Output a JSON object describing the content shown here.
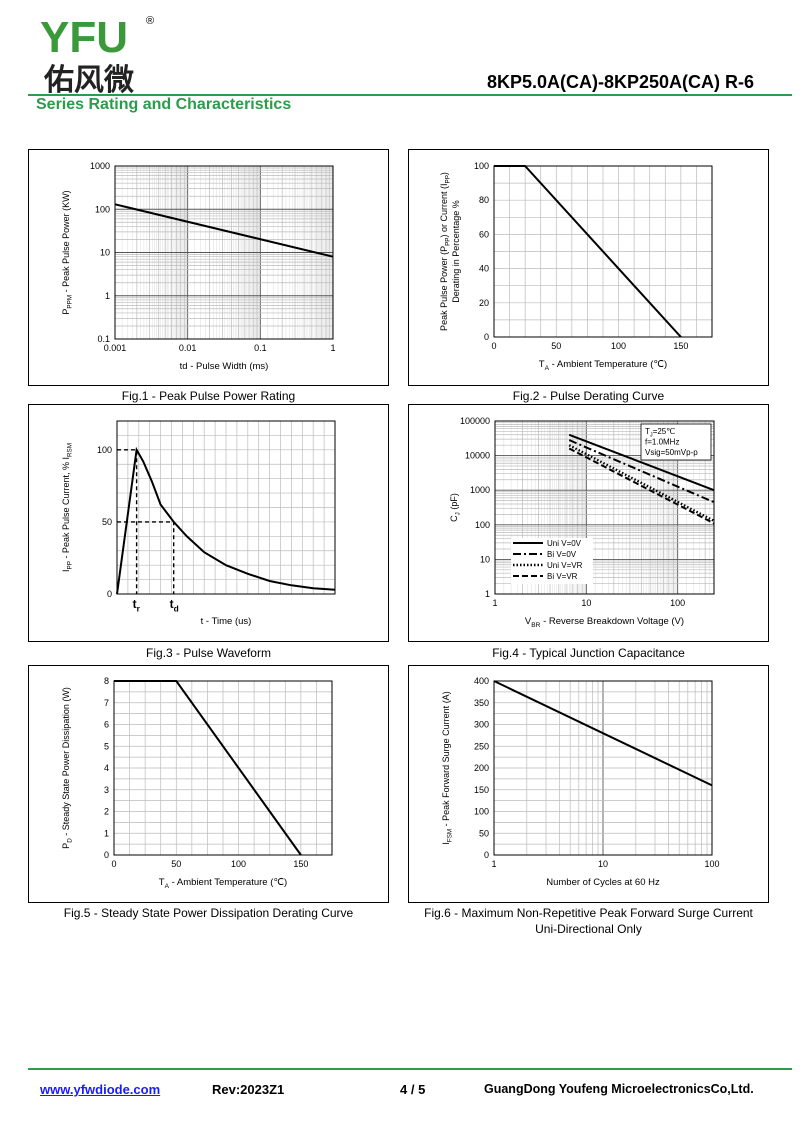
{
  "header": {
    "logo_text": "YFU",
    "logo_registered": "®",
    "logo_cn": "佑风微",
    "doc_title": "8KP5.0A(CA)-8KP250A(CA)  R-6",
    "section_title": "Series Rating and Characteristics"
  },
  "colors": {
    "accent": "#2a9d4a",
    "logo_yellow": "#f2b705",
    "logo_green": "#3a9a3a",
    "link": "#1a1aff"
  },
  "charts": {
    "fig1": {
      "caption": "Fig.1 - Peak Pulse Power Rating"
    },
    "fig2": {
      "caption": "Fig.2 - Pulse Derating Curve"
    },
    "fig3": {
      "caption": "Fig.3 - Pulse Waveform"
    },
    "fig4": {
      "caption": "Fig.4 - Typical Junction Capacitance"
    },
    "fig5": {
      "caption": "Fig.5 - Steady State Power Dissipation Derating Curve"
    },
    "fig6": {
      "caption": "Fig.6 - Maximum Non-Repetitive Peak Forward Surge Current",
      "caption2": "Uni-Directional Only"
    }
  },
  "chart_data": [
    {
      "id": "fig1",
      "type": "line",
      "title": "Fig.1 - Peak Pulse Power Rating",
      "xlabel": "td - Pulse Width (ms)",
      "ylabel": "P_PPM - Peak Pulse Power (KW)",
      "xscale": "log",
      "yscale": "log",
      "xlim": [
        0.001,
        1
      ],
      "ylim": [
        0.1,
        1000
      ],
      "xticks": [
        "0.001",
        "0.01",
        "0.1",
        "1"
      ],
      "yticks": [
        "0.1",
        "1",
        "10",
        "100",
        "1000"
      ],
      "series": [
        {
          "x": [
            0.001,
            1
          ],
          "y": [
            130,
            8
          ]
        }
      ]
    },
    {
      "id": "fig2",
      "type": "line",
      "title": "Fig.2 - Pulse Derating Curve",
      "xlabel": "T_A - Ambient Temperature (℃)",
      "ylabel": "Peak Pulse Power (P_PP) or Current (I_PP) Derating in Percentage %",
      "xlim": [
        0,
        175
      ],
      "ylim": [
        0,
        100
      ],
      "xticks": [
        "0",
        "50",
        "100",
        "150"
      ],
      "yticks": [
        "0",
        "20",
        "40",
        "60",
        "80",
        "100"
      ],
      "series": [
        {
          "x": [
            0,
            25,
            150
          ],
          "y": [
            100,
            100,
            0
          ]
        }
      ]
    },
    {
      "id": "fig3",
      "type": "line",
      "title": "Fig.3 - Pulse Waveform",
      "xlabel": "t - Time (us)",
      "ylabel": "I_PP - Peak Pulse Current, % I_RSM",
      "xlim": [
        0,
        10
      ],
      "ylim": [
        0,
        120
      ],
      "yticks": [
        "0",
        "50",
        "100"
      ],
      "annotations": [
        "t_r",
        "t_d"
      ],
      "series": [
        {
          "x": [
            0,
            0.9,
            1.2,
            1.6,
            2.0,
            2.6,
            3.2,
            4.0,
            5.0,
            6.0,
            7.0,
            8.0,
            9.0,
            10.0
          ],
          "y": [
            0,
            100,
            92,
            78,
            62,
            50,
            40,
            29,
            20,
            14,
            9,
            6,
            4,
            3
          ]
        }
      ]
    },
    {
      "id": "fig4",
      "type": "line",
      "title": "Fig.4 - Typical Junction Capacitance",
      "xlabel": "V_BR - Reverse Breakdown Voltage (V)",
      "ylabel": "C_J (pF)",
      "xscale": "log",
      "yscale": "log",
      "xlim": [
        1,
        250
      ],
      "ylim": [
        1,
        100000
      ],
      "xticks": [
        "1",
        "10",
        "100"
      ],
      "yticks": [
        "1",
        "10",
        "100",
        "1000",
        "10000",
        "100000"
      ],
      "annotation_lines": [
        "T_J=25℃",
        "f=1.0MHz",
        "Vsig=50mVp-p"
      ],
      "legend_position": "bottom-left",
      "series": [
        {
          "name": "Uni V=0V",
          "style": "solid",
          "x": [
            6.5,
            250
          ],
          "y": [
            40000,
            1000
          ]
        },
        {
          "name": "Bi V=0V",
          "style": "dashdot",
          "x": [
            6.5,
            250
          ],
          "y": [
            28000,
            450
          ]
        },
        {
          "name": "Uni V=VR",
          "style": "dotted",
          "x": [
            6.5,
            250
          ],
          "y": [
            20000,
            130
          ]
        },
        {
          "name": "Bi V=VR",
          "style": "dashed",
          "x": [
            6.5,
            250
          ],
          "y": [
            16000,
            110
          ]
        }
      ]
    },
    {
      "id": "fig5",
      "type": "line",
      "title": "Fig.5 - Steady State Power Dissipation Derating Curve",
      "xlabel": "T_A - Ambient Temperature (℃)",
      "ylabel": "P_D - Steady State Power Dissipation (W)",
      "xlim": [
        0,
        175
      ],
      "ylim": [
        0,
        8
      ],
      "xticks": [
        "0",
        "50",
        "100",
        "150"
      ],
      "yticks": [
        "0",
        "1",
        "2",
        "3",
        "4",
        "5",
        "6",
        "7",
        "8"
      ],
      "series": [
        {
          "x": [
            0,
            50,
            150
          ],
          "y": [
            8,
            8,
            0
          ]
        }
      ]
    },
    {
      "id": "fig6",
      "type": "line",
      "title": "Fig.6 - Maximum Non-Repetitive Peak Forward Surge Current",
      "subtitle": "Uni-Directional Only",
      "xlabel": "Number of Cycles at 60 Hz",
      "ylabel": "I_FSM - Peak Forward Surge Current (A)",
      "xscale": "log",
      "xlim": [
        1,
        100
      ],
      "ylim": [
        0,
        400
      ],
      "xticks": [
        "1",
        "10",
        "100"
      ],
      "yticks": [
        "0",
        "50",
        "100",
        "150",
        "200",
        "250",
        "300",
        "350",
        "400"
      ],
      "series": [
        {
          "x": [
            1,
            100
          ],
          "y": [
            400,
            160
          ]
        }
      ]
    }
  ],
  "footer": {
    "website": "www.yfwdiode.com",
    "rev": "Rev:2023Z1",
    "page": "4 / 5",
    "company": "GuangDong Youfeng MicroelectronicsCo,Ltd."
  }
}
